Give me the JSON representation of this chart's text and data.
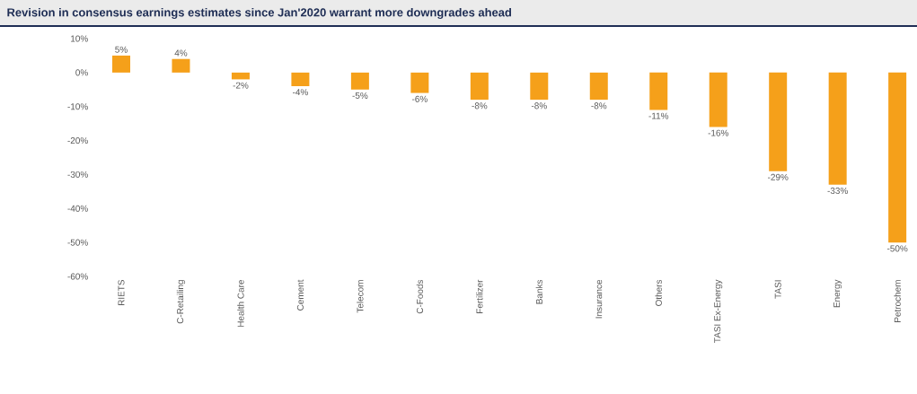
{
  "chart_data": {
    "type": "bar",
    "title": "Revision in consensus earnings estimates since Jan'2020 warrant more downgrades ahead",
    "categories": [
      "RIETS",
      "C-Retailing",
      "Health Care",
      "Cement",
      "Telecom",
      "C-Foods",
      "Fertilizer",
      "Banks",
      "Insurance",
      "Others",
      "TASI Ex-Energy",
      "TASI",
      "Energy",
      "Petrochem"
    ],
    "values": [
      5,
      4,
      -2,
      -4,
      -5,
      -6,
      -8,
      -8,
      -8,
      -11,
      -16,
      -29,
      -33,
      -50
    ],
    "value_labels": [
      "5%",
      "4%",
      "-2%",
      "-4%",
      "-5%",
      "-6%",
      "-8%",
      "-8%",
      "-8%",
      "-11%",
      "-16%",
      "-29%",
      "-33%",
      "-50%"
    ],
    "color": "#f5a01a",
    "ylim": [
      -60,
      10
    ],
    "yticks": [
      {
        "value": -60,
        "label": "-60%"
      },
      {
        "value": -50,
        "label": "-50%"
      },
      {
        "value": -40,
        "label": "-40%"
      },
      {
        "value": -30,
        "label": "-30%"
      },
      {
        "value": -20,
        "label": "-20%"
      },
      {
        "value": -10,
        "label": "-10%"
      },
      {
        "value": 0,
        "label": "0%"
      },
      {
        "value": 10,
        "label": "10%"
      }
    ],
    "grid": false
  }
}
